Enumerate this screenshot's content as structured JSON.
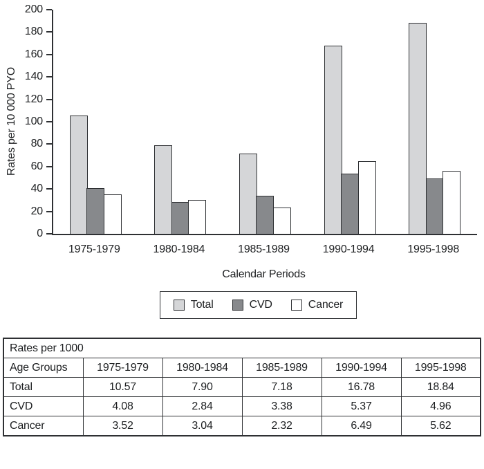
{
  "chart_data": [
    {
      "type": "bar",
      "title": "",
      "ylabel": "Rates per 10 000 PYO",
      "xlabel": "Calendar Periods",
      "ylim": [
        0,
        200
      ],
      "ytick_step": 20,
      "grid": false,
      "legend_position": "bottom-box",
      "categories": [
        "1975-1979",
        "1980-1984",
        "1985-1989",
        "1990-1994",
        "1995-1998"
      ],
      "series": [
        {
          "name": "Total",
          "color": "#d5d6d8",
          "values": [
            105.7,
            79.0,
            71.8,
            167.8,
            188.4
          ]
        },
        {
          "name": "CVD",
          "color": "#87898c",
          "values": [
            40.8,
            28.4,
            33.8,
            53.7,
            49.6
          ]
        },
        {
          "name": "Cancer",
          "color": "#ffffff",
          "values": [
            35.2,
            30.4,
            23.2,
            64.9,
            56.2
          ]
        }
      ],
      "bar_border_color": "#2e3033",
      "axis_color": "#2e3033"
    },
    {
      "type": "table",
      "title": "Rates per 1000",
      "row_header": "Age Groups",
      "columns": [
        "1975-1979",
        "1980-1984",
        "1985-1989",
        "1990-1994",
        "1995-1998"
      ],
      "rows": [
        {
          "label": "Total",
          "values": [
            "10.57",
            "7.90",
            "7.18",
            "16.78",
            "18.84"
          ]
        },
        {
          "label": "CVD",
          "values": [
            "4.08",
            "2.84",
            "3.38",
            "5.37",
            "4.96"
          ]
        },
        {
          "label": "Cancer",
          "values": [
            "3.52",
            "3.04",
            "2.32",
            "6.49",
            "5.62"
          ]
        }
      ]
    }
  ]
}
